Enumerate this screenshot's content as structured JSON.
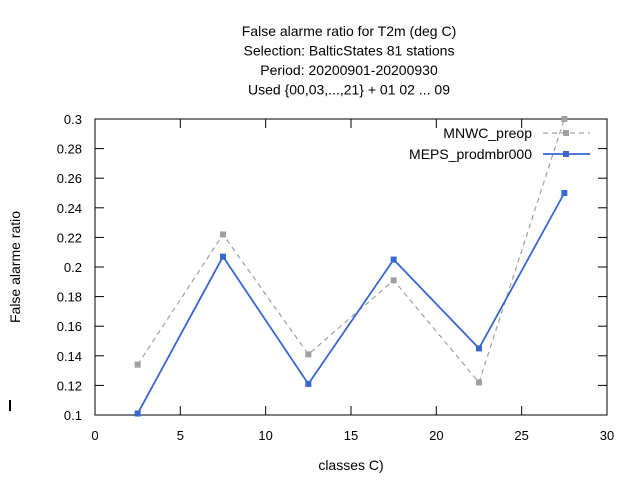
{
  "chart_data": {
    "type": "line",
    "title_lines": [
      "False alarme ratio  for T2m (deg C)",
      "Selection: BalticStates     81 stations",
      "Period: 20200901-20200930",
      "Used {00,03,...,21} + 01 02 ... 09"
    ],
    "xlabel": "classes C)",
    "ylabel": "False alarme ratio",
    "xlim": [
      0,
      30
    ],
    "ylim": [
      0.1,
      0.3
    ],
    "x_ticks": [
      0,
      5,
      10,
      15,
      20,
      25,
      30
    ],
    "y_ticks": [
      0.1,
      0.12,
      0.14,
      0.16,
      0.18,
      0.2,
      0.22,
      0.24,
      0.26,
      0.28,
      0.3
    ],
    "x_tick_labels": [
      "0",
      "5",
      "10",
      "15",
      "20",
      "25",
      "30"
    ],
    "y_tick_labels": [
      "0.1",
      "0.12",
      "0.14",
      "0.16",
      "0.18",
      "0.2",
      "0.22",
      "0.24",
      "0.26",
      "0.28",
      "0.3"
    ],
    "grid": false,
    "legend_position": "top-right",
    "x": [
      2.5,
      7.5,
      12.5,
      17.5,
      22.5,
      27.5
    ],
    "series": [
      {
        "name": "MNWC_preop",
        "color": "#a0a0a0",
        "dash": true,
        "values": [
          0.134,
          0.222,
          0.141,
          0.191,
          0.122,
          0.3
        ]
      },
      {
        "name": "MEPS_prodmbr000",
        "color": "#3a66d0",
        "dash": false,
        "values": [
          0.101,
          0.207,
          0.121,
          0.205,
          0.145,
          0.25
        ]
      }
    ]
  }
}
